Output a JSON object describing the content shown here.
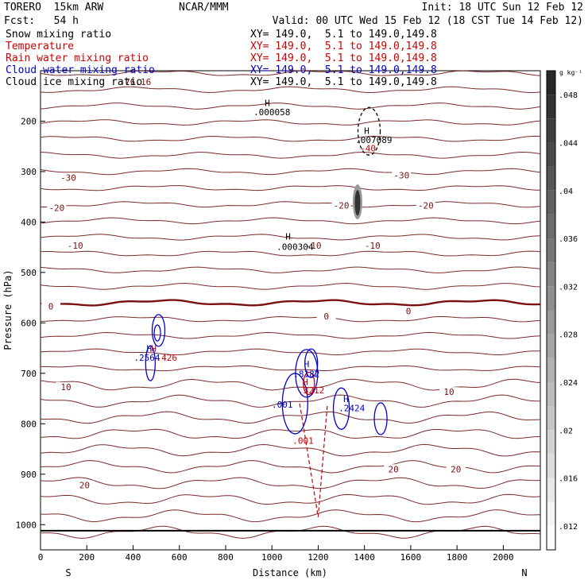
{
  "header": {
    "model": "TORERO  15km ARW",
    "org": "NCAR/MMM",
    "init": "Init: 18 UTC Sun 12 Feb 12",
    "fcst": "Fcst:   54 h",
    "valid": "Valid: 00 UTC Wed 15 Feb 12 (18 CST Tue 14 Feb 12)"
  },
  "legend": [
    {
      "name": "Snow mixing ratio",
      "color": "#000000",
      "xy": "XY= 149.0,  5.1 to 149.0,149.8"
    },
    {
      "name": "Temperature",
      "color": "#cc0000",
      "xy": "XY= 149.0,  5.1 to 149.0,149.8"
    },
    {
      "name": "Rain water mixing ratio",
      "color": "#cc0000",
      "xy": "XY= 149.0,  5.1 to 149.0,149.8"
    },
    {
      "name": "Cloud water mixing ratio",
      "color": "#0000cc",
      "xy": "XY= 149.0,  5.1 to 149.0,149.8"
    },
    {
      "name": "Cloud ice mixing ratio",
      "color": "#000000",
      "xy": "XY= 149.0,  5.1 to 149.0,149.8"
    }
  ],
  "chart_data": {
    "type": "contour",
    "xlabel": "Distance (km)",
    "ylabel": "Pressure (hPa)",
    "xlim": [
      0,
      2160
    ],
    "ylim": [
      1050,
      100
    ],
    "x_ticks": [
      "0",
      "200",
      "400",
      "600",
      "800",
      "1000",
      "1200",
      "1400",
      "1600",
      "1800",
      "2000"
    ],
    "y_ticks": [
      "200",
      "300",
      "400",
      "500",
      "600",
      "700",
      "800",
      "900",
      "1000"
    ],
    "x_ends": {
      "left": "S",
      "right": "N"
    },
    "colorbar": {
      "unit": "g kg⁻¹",
      "ticks": [
        ".012",
        ".016",
        ".02",
        ".024",
        ".028",
        ".032",
        ".036",
        ".04",
        ".044",
        ".048"
      ],
      "range": [
        0.01,
        0.05
      ]
    },
    "temperature_labels": [
      {
        "text": "-76.16",
        "x": 410,
        "p": 125
      },
      {
        "text": "-30",
        "x": 120,
        "p": 315
      },
      {
        "text": "-30",
        "x": 1560,
        "p": 310
      },
      {
        "text": "-20",
        "x": 70,
        "p": 375
      },
      {
        "text": "-20",
        "x": 1300,
        "p": 370
      },
      {
        "text": "-20",
        "x": 1665,
        "p": 370
      },
      {
        "text": "-10",
        "x": 150,
        "p": 450
      },
      {
        "text": "-10",
        "x": 1180,
        "p": 450
      },
      {
        "text": "-10",
        "x": 1435,
        "p": 450
      },
      {
        "text": "0",
        "x": 45,
        "p": 570
      },
      {
        "text": "0",
        "x": 1235,
        "p": 590
      },
      {
        "text": "0",
        "x": 1590,
        "p": 580
      },
      {
        "text": "10",
        "x": 110,
        "p": 730
      },
      {
        "text": "10",
        "x": 1765,
        "p": 740
      },
      {
        "text": "20",
        "x": 190,
        "p": 925
      },
      {
        "text": "20",
        "x": 1525,
        "p": 893
      },
      {
        "text": "20",
        "x": 1795,
        "p": 893
      }
    ],
    "annotations": [
      {
        "text": "H",
        "x": 980,
        "p": 170,
        "color": "#000000"
      },
      {
        "text": ".000058",
        "x": 1000,
        "p": 188,
        "color": "#000000"
      },
      {
        "text": "H",
        "x": 1410,
        "p": 225,
        "color": "#000000"
      },
      {
        "text": ".007089",
        "x": 1440,
        "p": 243,
        "color": "#000000"
      },
      {
        "text": "-40",
        "x": 1415,
        "p": 260,
        "color": "#cc0000"
      },
      {
        "text": "H",
        "x": 1070,
        "p": 435,
        "color": "#000000"
      },
      {
        "text": ".000304",
        "x": 1100,
        "p": 455,
        "color": "#000000"
      },
      {
        "text": "H",
        "x": 470,
        "p": 657,
        "color": "#0000cc"
      },
      {
        "text": "H",
        "x": 490,
        "p": 657,
        "color": "#cc0000"
      },
      {
        "text": ".2564",
        "x": 460,
        "p": 675,
        "color": "#0000cc"
      },
      {
        "text": ".426",
        "x": 545,
        "p": 675,
        "color": "#cc0000"
      },
      {
        "text": "H",
        "x": 1150,
        "p": 688,
        "color": "#0000cc"
      },
      {
        "text": ".8182",
        "x": 1150,
        "p": 707,
        "color": "#0000cc"
      },
      {
        "text": "H",
        "x": 1145,
        "p": 723,
        "color": "#cc0000"
      },
      {
        "text": ".3212",
        "x": 1170,
        "p": 740,
        "color": "#cc0000"
      },
      {
        "text": ".001",
        "x": 1045,
        "p": 768,
        "color": "#0000cc"
      },
      {
        "text": "H",
        "x": 1320,
        "p": 757,
        "color": "#0000cc"
      },
      {
        "text": ".2424",
        "x": 1345,
        "p": 775,
        "color": "#0000cc"
      },
      {
        "text": ".001",
        "x": 1135,
        "p": 840,
        "color": "#cc0000"
      }
    ]
  }
}
